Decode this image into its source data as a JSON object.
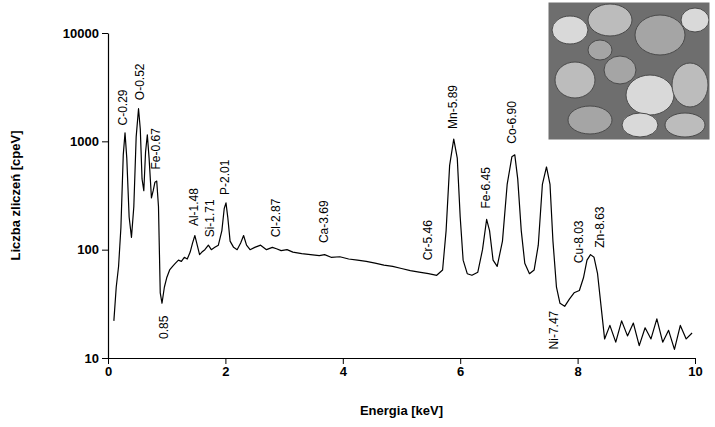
{
  "chart_data": {
    "type": "line",
    "x_label": "Energia [keV]",
    "y_label": "Liczba zliczeń [cpeV]",
    "xlim": [
      0,
      10
    ],
    "ylim": [
      10,
      10000
    ],
    "xticks": [
      0,
      2,
      4,
      6,
      8,
      10
    ],
    "yticks": [
      10,
      100,
      1000,
      10000
    ],
    "log": "y",
    "grid": false,
    "color": "#000000",
    "x": [
      0.1,
      0.14,
      0.18,
      0.22,
      0.26,
      0.29,
      0.32,
      0.36,
      0.4,
      0.44,
      0.48,
      0.52,
      0.55,
      0.58,
      0.61,
      0.64,
      0.67,
      0.7,
      0.74,
      0.77,
      0.8,
      0.83,
      0.86,
      0.89,
      0.92,
      0.96,
      1.0,
      1.05,
      1.1,
      1.15,
      1.2,
      1.25,
      1.3,
      1.35,
      1.4,
      1.44,
      1.48,
      1.52,
      1.56,
      1.6,
      1.65,
      1.71,
      1.76,
      1.82,
      1.88,
      1.94,
      1.98,
      2.01,
      2.04,
      2.08,
      2.14,
      2.2,
      2.26,
      2.31,
      2.36,
      2.42,
      2.5,
      2.6,
      2.7,
      2.8,
      2.87,
      2.95,
      3.05,
      3.15,
      3.3,
      3.45,
      3.6,
      3.69,
      3.8,
      3.95,
      4.1,
      4.25,
      4.4,
      4.55,
      4.7,
      4.85,
      5.0,
      5.15,
      5.3,
      5.46,
      5.6,
      5.7,
      5.76,
      5.82,
      5.89,
      5.95,
      6.0,
      6.05,
      6.12,
      6.2,
      6.3,
      6.38,
      6.45,
      6.5,
      6.56,
      6.63,
      6.72,
      6.8,
      6.88,
      6.93,
      6.98,
      7.04,
      7.1,
      7.18,
      7.26,
      7.33,
      7.4,
      7.47,
      7.53,
      7.58,
      7.64,
      7.7,
      7.78,
      7.86,
      7.94,
      8.03,
      8.1,
      8.16,
      8.22,
      8.28,
      8.34,
      8.4,
      8.46,
      8.55,
      8.65,
      8.75,
      8.85,
      8.95,
      9.05,
      9.15,
      9.25,
      9.35,
      9.45,
      9.55,
      9.65,
      9.75,
      9.85,
      9.95
    ],
    "values": [
      22,
      45,
      70,
      160,
      750,
      1200,
      700,
      200,
      130,
      250,
      1100,
      2000,
      1300,
      450,
      350,
      800,
      1150,
      700,
      300,
      350,
      420,
      430,
      250,
      40,
      32,
      45,
      55,
      65,
      70,
      75,
      80,
      78,
      85,
      82,
      95,
      115,
      135,
      110,
      90,
      95,
      100,
      110,
      100,
      105,
      110,
      150,
      240,
      270,
      200,
      120,
      105,
      100,
      115,
      135,
      110,
      100,
      105,
      110,
      100,
      105,
      102,
      98,
      100,
      95,
      92,
      90,
      88,
      90,
      85,
      86,
      82,
      80,
      78,
      75,
      72,
      70,
      67,
      64,
      62,
      60,
      58,
      65,
      150,
      600,
      1050,
      700,
      200,
      80,
      60,
      58,
      62,
      100,
      190,
      150,
      80,
      70,
      120,
      400,
      720,
      750,
      450,
      150,
      75,
      60,
      65,
      110,
      400,
      580,
      400,
      120,
      45,
      32,
      30,
      35,
      40,
      42,
      55,
      80,
      90,
      85,
      60,
      30,
      15,
      20,
      14,
      22,
      16,
      21,
      13,
      19,
      15,
      23,
      14,
      18,
      12,
      20,
      15,
      17
    ],
    "annotations": [
      {
        "text": "C-0.29",
        "x": 0.27,
        "y": 1400
      },
      {
        "text": "O-0.52",
        "x": 0.56,
        "y": 2400
      },
      {
        "text": "Fe-0.67",
        "x": 0.84,
        "y": 550
      },
      {
        "text": "0.85",
        "x": 0.96,
        "y": 15
      },
      {
        "text": "Al-1.48",
        "x": 1.48,
        "y": 165
      },
      {
        "text": "Si-1.71",
        "x": 1.75,
        "y": 130
      },
      {
        "text": "P-2.01",
        "x": 2.01,
        "y": 320
      },
      {
        "text": "Cl-2.87",
        "x": 2.87,
        "y": 130
      },
      {
        "text": "Ca-3.69",
        "x": 3.69,
        "y": 115
      },
      {
        "text": "Cr-5.46",
        "x": 5.46,
        "y": 80
      },
      {
        "text": "Mn-5.89",
        "x": 5.89,
        "y": 1300
      },
      {
        "text": "Fe-6.45",
        "x": 6.45,
        "y": 240
      },
      {
        "text": "Co-6.90",
        "x": 6.9,
        "y": 950
      },
      {
        "text": "Ni-7.47",
        "x": 7.62,
        "y": 12
      },
      {
        "text": "Cu-8.03",
        "x": 8.03,
        "y": 75
      },
      {
        "text": "Zn-8.63",
        "x": 8.4,
        "y": 104
      }
    ]
  }
}
